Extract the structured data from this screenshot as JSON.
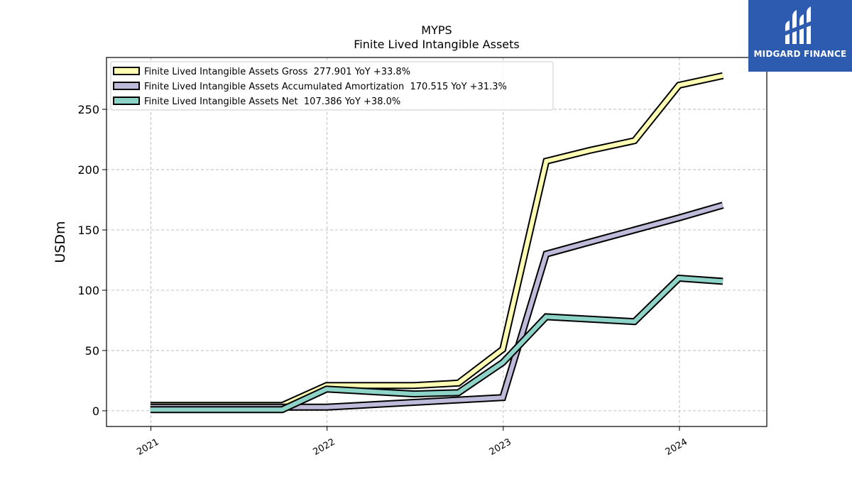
{
  "brand": {
    "name": "MIDGARD FINANCE",
    "color": "#2c5bb0"
  },
  "chart_data": {
    "type": "line",
    "title": "MYPS",
    "subtitle": "Finite Lived Intangible Assets",
    "xlabel": "",
    "ylabel": "USDm",
    "x_ticks": [
      "2021",
      "2022",
      "2023",
      "2024"
    ],
    "y_ticks": [
      0,
      50,
      100,
      150,
      200,
      250
    ],
    "xlim": [
      "2020-10-01",
      "2024-06-30"
    ],
    "ylim": [
      -13,
      293
    ],
    "grid": true,
    "legend_position": "top-left",
    "x": [
      "2020-12-31",
      "2021-09-30",
      "2021-12-31",
      "2022-06-30",
      "2022-09-30",
      "2022-12-31",
      "2023-03-31",
      "2023-06-30",
      "2023-09-30",
      "2023-12-31",
      "2024-03-31"
    ],
    "series": [
      {
        "name": "Finite Lived Intangible Assets Gross",
        "legend_label": "Finite Lived Intangible Assets Gross  277.901 YoY +33.8%",
        "color": "#ffffb3",
        "values": [
          4.5,
          4.5,
          21.0,
          21.0,
          23.0,
          51.0,
          207.0,
          216.0,
          224.0,
          270.0,
          277.9
        ]
      },
      {
        "name": "Finite Lived Intangible Assets Accumulated Amortization",
        "legend_label": "Finite Lived Intangible Assets Accumulated Amortization  170.515 YoY +31.3%",
        "color": "#bebada",
        "values": [
          3.0,
          3.0,
          3.0,
          7.0,
          9.0,
          11.0,
          130.0,
          140.0,
          150.0,
          160.0,
          170.5
        ]
      },
      {
        "name": "Finite Lived Intangible Assets Net",
        "legend_label": "Finite Lived Intangible Assets Net  107.386 YoY +38.0%",
        "color": "#8dd3c7",
        "values": [
          1.0,
          1.0,
          18.0,
          14.0,
          15.0,
          40.0,
          78.0,
          76.0,
          74.0,
          110.0,
          107.4
        ]
      }
    ]
  }
}
